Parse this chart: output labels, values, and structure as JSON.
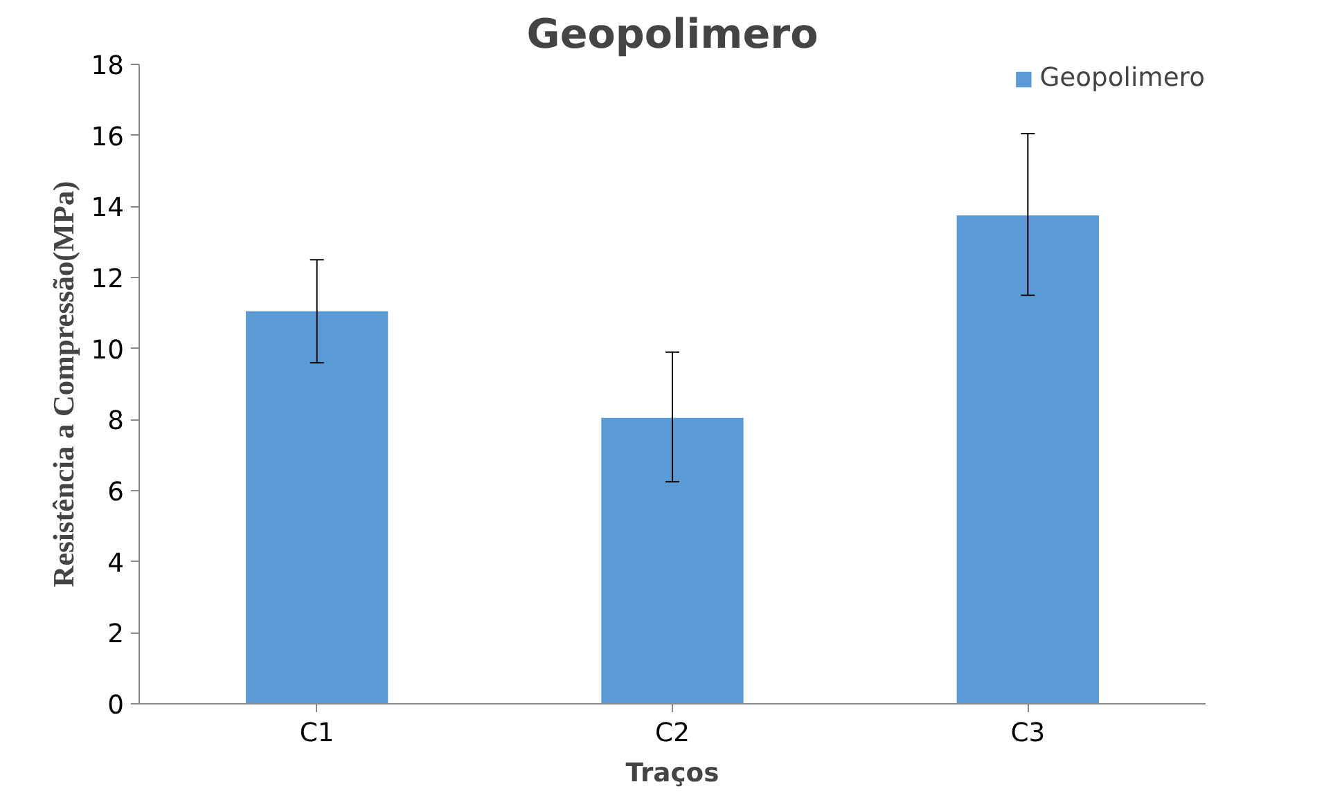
{
  "chart_data": {
    "type": "bar",
    "title": "Geopolimero",
    "xlabel": "Traços",
    "ylabel": "Resistência a Compressão(MPa)",
    "categories": [
      "C1",
      "C2",
      "C3"
    ],
    "series": [
      {
        "name": "Geopolimero",
        "color": "#5b9bd5",
        "values": [
          11.05,
          8.05,
          13.75
        ],
        "errors": [
          [
            9.6,
            12.5
          ],
          [
            6.25,
            9.9
          ],
          [
            11.5,
            16.05
          ]
        ]
      }
    ],
    "ylim": [
      0,
      18
    ],
    "yticks": [
      0,
      2,
      4,
      6,
      8,
      10,
      12,
      14,
      16,
      18
    ],
    "grid": false,
    "legend": "top right"
  }
}
